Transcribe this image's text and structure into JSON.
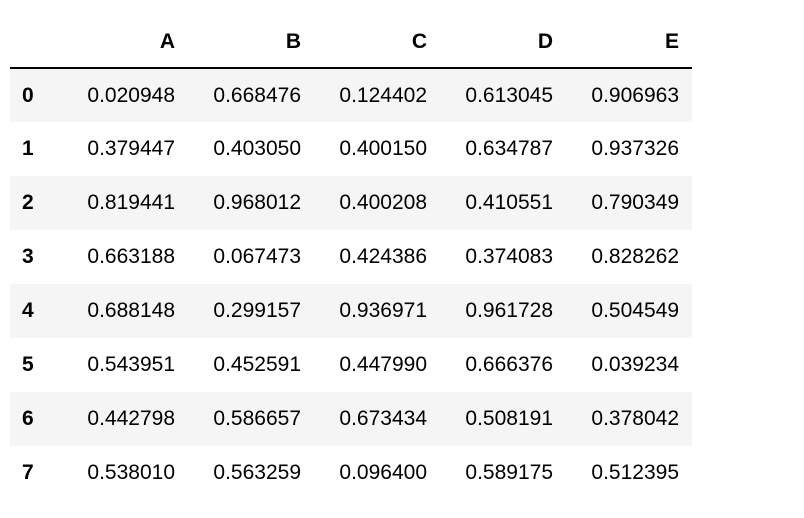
{
  "table": {
    "index_header": "",
    "columns": [
      "A",
      "B",
      "C",
      "D",
      "E"
    ],
    "rows": [
      {
        "index": "0",
        "values": [
          "0.020948",
          "0.668476",
          "0.124402",
          "0.613045",
          "0.906963"
        ]
      },
      {
        "index": "1",
        "values": [
          "0.379447",
          "0.403050",
          "0.400150",
          "0.634787",
          "0.937326"
        ]
      },
      {
        "index": "2",
        "values": [
          "0.819441",
          "0.968012",
          "0.400208",
          "0.410551",
          "0.790349"
        ]
      },
      {
        "index": "3",
        "values": [
          "0.663188",
          "0.067473",
          "0.424386",
          "0.374083",
          "0.828262"
        ]
      },
      {
        "index": "4",
        "values": [
          "0.688148",
          "0.299157",
          "0.936971",
          "0.961728",
          "0.504549"
        ]
      },
      {
        "index": "5",
        "values": [
          "0.543951",
          "0.452591",
          "0.447990",
          "0.666376",
          "0.039234"
        ]
      },
      {
        "index": "6",
        "values": [
          "0.442798",
          "0.586657",
          "0.673434",
          "0.508191",
          "0.378042"
        ]
      },
      {
        "index": "7",
        "values": [
          "0.538010",
          "0.563259",
          "0.096400",
          "0.589175",
          "0.512395"
        ]
      }
    ]
  }
}
